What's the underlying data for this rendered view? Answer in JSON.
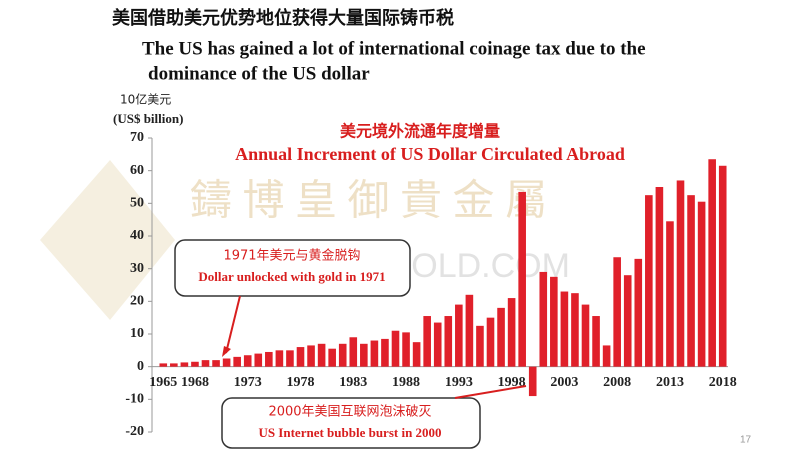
{
  "header": {
    "title_cn": "美国借助美元优势地位获得大量国际铸币税",
    "title_en": [
      "The US has gained a lot of international coinage tax due to the",
      "dominance of the US dollar"
    ]
  },
  "watermark": [
    "鑄 博 皇 御 貴 金 屬",
    "BIBGOLD.COM"
  ],
  "page_number": "17",
  "chart_data": {
    "type": "bar",
    "title": [
      "美元境外流通年度增量",
      "Annual Increment of US Dollar Circulated Abroad"
    ],
    "y_label": [
      "10亿美元",
      "(US$ billion)"
    ],
    "categories": [
      "1965",
      null,
      null,
      "1968",
      null,
      null,
      null,
      null,
      "1973",
      null,
      null,
      null,
      null,
      "1978",
      null,
      null,
      null,
      null,
      "1983",
      null,
      null,
      null,
      null,
      "1988",
      null,
      null,
      null,
      null,
      "1993",
      null,
      null,
      null,
      null,
      "1998",
      null,
      null,
      null,
      null,
      "2003",
      null,
      null,
      null,
      null,
      "2008",
      null,
      null,
      null,
      null,
      "2013",
      null,
      null,
      null,
      null,
      "2018"
    ],
    "values": [
      1,
      1,
      1.3,
      1.5,
      2,
      2,
      2.5,
      3,
      3.5,
      4,
      4.5,
      5,
      5,
      6,
      6.5,
      7,
      5.5,
      7,
      9,
      7,
      8,
      8.5,
      11,
      10.5,
      7.5,
      15.5,
      13.5,
      15.5,
      19,
      22,
      12.5,
      15,
      18,
      21,
      53.5,
      -9,
      29,
      27.5,
      23,
      22.5,
      19,
      15.5,
      6.5,
      33.5,
      28,
      33,
      52.5,
      55,
      44.5,
      57,
      52.5,
      50.5,
      63.5,
      61.5
    ],
    "color": "#e0202a",
    "ylim": [
      -20,
      70
    ],
    "yticks": [
      -20,
      -10,
      0,
      10,
      20,
      30,
      40,
      50,
      60,
      70
    ],
    "annotations": [
      {
        "text": [
          "1971年美元与黄金脱钩",
          "Dollar unlocked with gold in 1971"
        ]
      },
      {
        "text": [
          "2000年美国互联网泡沫破灭",
          "US Internet bubble burst  in 2000"
        ]
      }
    ]
  }
}
